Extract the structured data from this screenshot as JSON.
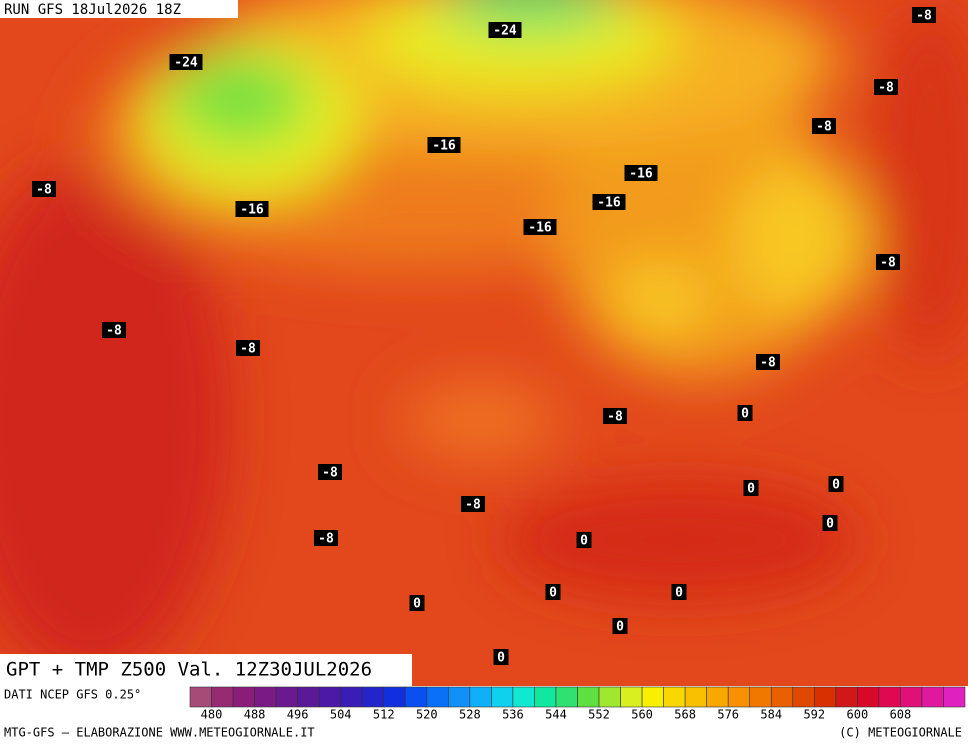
{
  "run_label": "RUN GFS 18Jul2026 18Z",
  "title": "GPT + TMP Z500 Val. 12Z30JUL2026",
  "source": "DATI NCEP GFS 0.25°",
  "credit": "MTG-GFS — ELABORAZIONE WWW.METEOGIORNALE.IT",
  "copyright": "(C) METEOGIORNALE",
  "contour_labels": [
    -24,
    -24,
    -8,
    -8,
    -8,
    -16,
    -16,
    -8,
    -16,
    -16,
    -16,
    -8,
    -8,
    -8,
    -8,
    -8,
    0,
    -8,
    -8,
    0,
    0,
    0,
    -8,
    0,
    0,
    0,
    0,
    0,
    0
  ],
  "colorbar": {
    "colors": [
      "#a64a78",
      "#962a73",
      "#8a1c7a",
      "#7a1a84",
      "#6a1a8e",
      "#5a1a98",
      "#4a1aa6",
      "#3a1cb8",
      "#2424cc",
      "#1030e0",
      "#0a50f0",
      "#0a70f8",
      "#1090f8",
      "#10b0f8",
      "#10d0f0",
      "#10e8d0",
      "#10e8a0",
      "#30e070",
      "#60e040",
      "#a0e830",
      "#d8f020",
      "#f8f000",
      "#f8d800",
      "#f8c000",
      "#f8a800",
      "#f89000",
      "#f07800",
      "#e86000",
      "#e04800",
      "#d83000",
      "#d01818",
      "#d80828",
      "#e00850",
      "#e01078",
      "#e018a0",
      "#e020c0"
    ],
    "ticks": [
      480,
      488,
      496,
      504,
      512,
      520,
      528,
      536,
      544,
      552,
      560,
      568,
      576,
      584,
      592,
      600,
      608
    ]
  }
}
